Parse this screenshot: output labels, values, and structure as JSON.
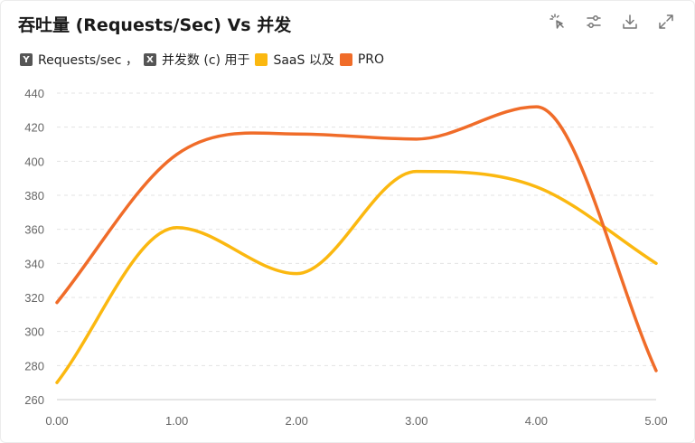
{
  "toolbar": {
    "icons": [
      "pointer-select-icon",
      "sliders-icon",
      "download-icon",
      "expand-icon"
    ]
  },
  "legend": {
    "y_tag": "Y",
    "y_text": "Requests/sec ，",
    "x_tag": "X",
    "x_text": "并发数 (c) 用于"
  },
  "colors": {
    "saas": "#FBB810",
    "pro": "#F06C29",
    "grid": "#e3e3e3",
    "axis": "#cccccc",
    "tick": "#666666"
  },
  "chart_data": {
    "type": "line",
    "title": "吞吐量 (Requests/Sec) Vs 并发",
    "x": [
      0,
      1,
      2,
      3,
      4,
      5
    ],
    "x_tick_labels": [
      "0.00",
      "1.00",
      "2.00",
      "3.00",
      "4.00",
      "5.00"
    ],
    "xlim": [
      0,
      5
    ],
    "ylim": [
      260,
      440
    ],
    "y_ticks": [
      260,
      280,
      300,
      320,
      340,
      360,
      380,
      400,
      420,
      440
    ],
    "grid": true,
    "legend_position": "top-left",
    "series": [
      {
        "name": "SaaS 以及",
        "color": "#FBB810",
        "values": [
          270,
          361,
          334,
          394,
          385,
          340
        ]
      },
      {
        "name": "PRO",
        "color": "#F06C29",
        "values": [
          317,
          404,
          416,
          413,
          432,
          277
        ]
      }
    ]
  }
}
